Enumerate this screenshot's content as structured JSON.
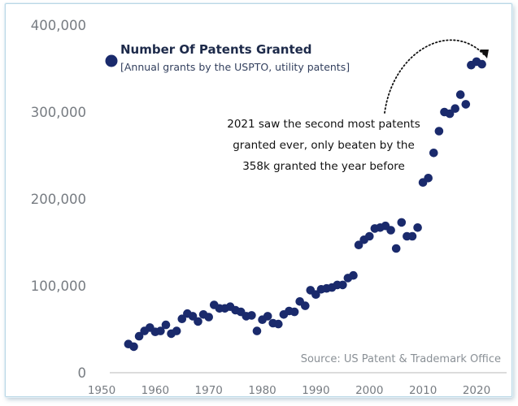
{
  "chart_data": {
    "type": "scatter",
    "title": "Number Of Patents Granted",
    "subtitle": "[Annual grants by the USPTO, utility patents]",
    "legend": {
      "label": "Number Of Patents Granted",
      "placement": "top-left"
    },
    "xlim": [
      1950,
      2023
    ],
    "ylim": [
      0,
      400000
    ],
    "xticks": [
      "1950",
      "1960",
      "1970",
      "1980",
      "1990",
      "2000",
      "2010",
      "2020"
    ],
    "yticks": [
      "0",
      "100,000",
      "200,000",
      "300,000",
      "400,000"
    ],
    "grid": false,
    "marker_color": "#1a2a6c",
    "annotation": [
      "2021 saw the second most patents",
      "granted ever, only beaten by the",
      "358k granted the year before"
    ],
    "source": "Source: US Patent & Trademark Office",
    "series": [
      {
        "x": [
          1955,
          1956,
          1957,
          1958,
          1959,
          1960,
          1961,
          1962,
          1963,
          1964,
          1965,
          1966,
          1967,
          1968,
          1969,
          1970,
          1971,
          1972,
          1973,
          1974,
          1975,
          1976,
          1977,
          1978,
          1979,
          1980,
          1981,
          1982,
          1983,
          1984,
          1985,
          1986,
          1987,
          1988,
          1989,
          1990,
          1991,
          1992,
          1993,
          1994,
          1995,
          1996,
          1997,
          1998,
          1999,
          2000,
          2001,
          2002,
          2003,
          2004,
          2005,
          2006,
          2007,
          2008,
          2009,
          2010,
          2011,
          2012,
          2013,
          2014,
          2015,
          2016,
          2017,
          2018,
          2019,
          2020,
          2021
        ],
        "y": [
          33000,
          30000,
          42000,
          48000,
          52000,
          47000,
          48000,
          55000,
          45000,
          48000,
          62000,
          68000,
          65000,
          59000,
          67000,
          64000,
          78000,
          74000,
          74000,
          76000,
          72000,
          70000,
          65000,
          66000,
          48000,
          61000,
          65000,
          57000,
          56000,
          67000,
          71000,
          70000,
          82000,
          77000,
          95000,
          90000,
          96000,
          97000,
          98000,
          101000,
          101000,
          109000,
          112000,
          147000,
          153000,
          157000,
          166000,
          167000,
          169000,
          164000,
          143000,
          173000,
          157000,
          157000,
          167000,
          219000,
          224000,
          253000,
          278000,
          300000,
          298000,
          304000,
          320000,
          309000,
          354000,
          358000,
          355000
        ]
      }
    ]
  }
}
